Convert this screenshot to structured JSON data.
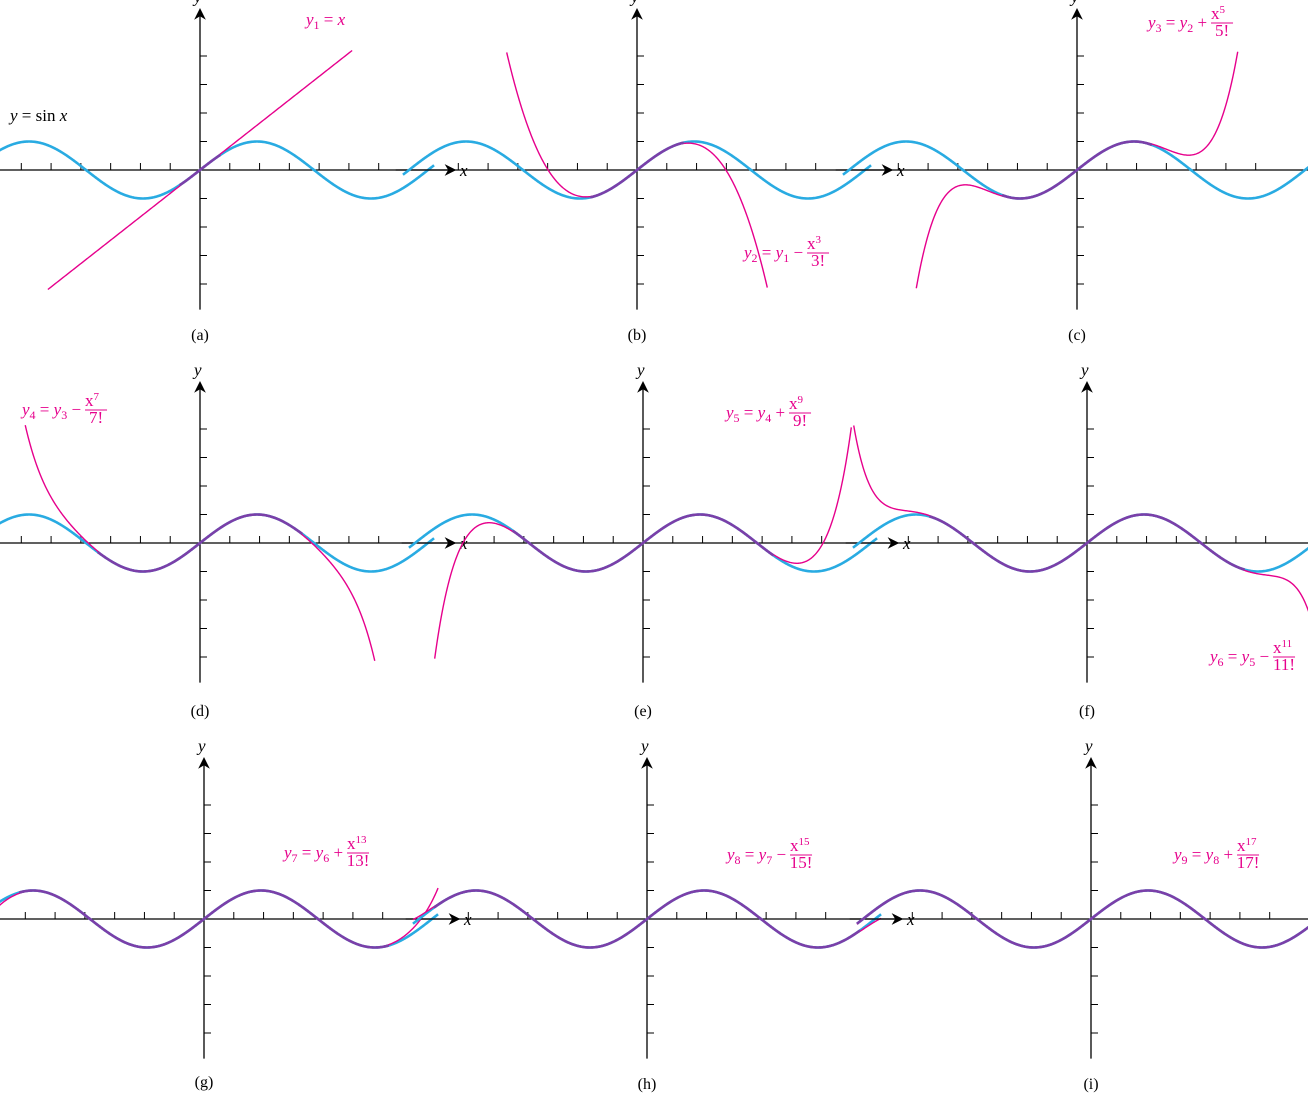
{
  "colors": {
    "sine": "#29abe2",
    "approximation": "#e6008c",
    "overlap": "#7b3fa8",
    "axes": "#000000"
  },
  "axis_letters": {
    "x": "x",
    "y": "y"
  },
  "sine_label": "y = sin x",
  "chart_data": [
    {
      "type": "line",
      "panel": "a",
      "caption": "(a)",
      "x_ticks_count": 12,
      "y_ticks_count": 8,
      "formula": {
        "y": "1",
        "prev": null,
        "sign": null,
        "power": null,
        "factorial": null,
        "text": "y1 = x"
      },
      "degree": 1,
      "series": [
        {
          "name": "y = sin x",
          "function": "sin(x)"
        },
        {
          "name": "y1 = x",
          "function": "x"
        }
      ]
    },
    {
      "type": "line",
      "panel": "b",
      "caption": "(b)",
      "formula": {
        "y": "2",
        "prev": "1",
        "sign": "−",
        "power": "3",
        "factorial": "3!"
      },
      "degree": 3,
      "series": [
        {
          "name": "y = sin x",
          "function": "sin(x)"
        },
        {
          "name": "y2 = y1 − x^3/3!",
          "function": "x - x^3/3!"
        }
      ]
    },
    {
      "type": "line",
      "panel": "c",
      "caption": "(c)",
      "formula": {
        "y": "3",
        "prev": "2",
        "sign": "+",
        "power": "5",
        "factorial": "5!"
      },
      "degree": 5,
      "series": [
        {
          "name": "y = sin x",
          "function": "sin(x)"
        },
        {
          "name": "y3 = y2 + x^5/5!",
          "function": "x - x^3/3! + x^5/5!"
        }
      ]
    },
    {
      "type": "line",
      "panel": "d",
      "caption": "(d)",
      "formula": {
        "y": "4",
        "prev": "3",
        "sign": "−",
        "power": "7",
        "factorial": "7!"
      },
      "degree": 7,
      "series": [
        {
          "name": "y = sin x",
          "function": "sin(x)"
        },
        {
          "name": "y4 = y3 − x^7/7!",
          "function": "Taylor polynomial of degree 7"
        }
      ]
    },
    {
      "type": "line",
      "panel": "e",
      "caption": "(e)",
      "formula": {
        "y": "5",
        "prev": "4",
        "sign": "+",
        "power": "9",
        "factorial": "9!"
      },
      "degree": 9,
      "series": [
        {
          "name": "y = sin x",
          "function": "sin(x)"
        },
        {
          "name": "y5 = y4 + x^9/9!",
          "function": "Taylor polynomial of degree 9"
        }
      ]
    },
    {
      "type": "line",
      "panel": "f",
      "caption": "(f)",
      "formula": {
        "y": "6",
        "prev": "5",
        "sign": "−",
        "power": "11",
        "factorial": "11!"
      },
      "degree": 11,
      "series": [
        {
          "name": "y = sin x",
          "function": "sin(x)"
        },
        {
          "name": "y6 = y5 − x^11/11!",
          "function": "Taylor polynomial of degree 11"
        }
      ]
    },
    {
      "type": "line",
      "panel": "g",
      "caption": "(g)",
      "formula": {
        "y": "7",
        "prev": "6",
        "sign": "+",
        "power": "13",
        "factorial": "13!"
      },
      "degree": 13,
      "series": [
        {
          "name": "y = sin x",
          "function": "sin(x)"
        },
        {
          "name": "y7 = y6 + x^13/13!",
          "function": "Taylor polynomial of degree 13"
        }
      ]
    },
    {
      "type": "line",
      "panel": "h",
      "caption": "(h)",
      "formula": {
        "y": "8",
        "prev": "7",
        "sign": "−",
        "power": "15",
        "factorial": "15!"
      },
      "degree": 15,
      "series": [
        {
          "name": "y = sin x",
          "function": "sin(x)"
        },
        {
          "name": "y8 = y7 − x^15/15!",
          "function": "Taylor polynomial of degree 15"
        }
      ]
    },
    {
      "type": "line",
      "panel": "i",
      "caption": "(i)",
      "formula": {
        "y": "9",
        "prev": "8",
        "sign": "+",
        "power": "17",
        "factorial": "17!"
      },
      "degree": 17,
      "series": [
        {
          "name": "y = sin x",
          "function": "sin(x)"
        },
        {
          "name": "y9 = y8 + x^17/17!",
          "function": "Taylor polynomial of degree 17"
        }
      ]
    }
  ]
}
